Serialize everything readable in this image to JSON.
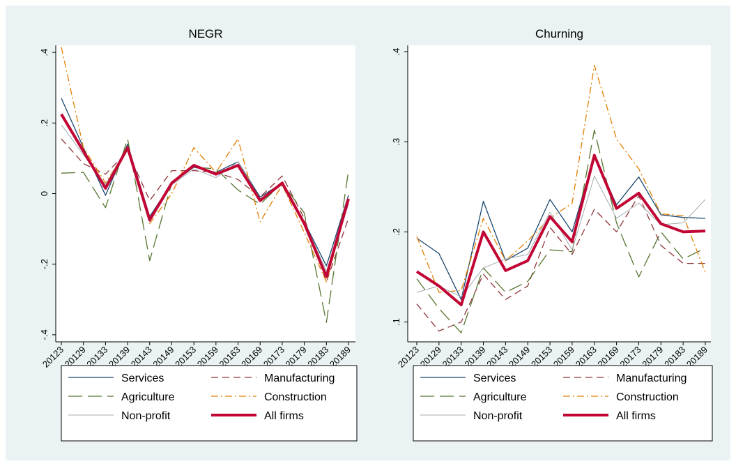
{
  "chart_data": [
    {
      "type": "line",
      "title": "NEGR",
      "categories": [
        "20123",
        "20129",
        "20133",
        "20139",
        "20143",
        "20149",
        "20153",
        "20159",
        "20163",
        "20169",
        "20173",
        "20179",
        "20183",
        "20189"
      ],
      "ylim": [
        -0.42,
        0.42
      ],
      "yticks": [
        {
          "value": -0.4,
          "label": "-.4"
        },
        {
          "value": -0.2,
          "label": "-.2"
        },
        0,
        {
          "value": 0.2,
          "label": ".2"
        },
        {
          "value": 0.4,
          "label": ".4"
        }
      ],
      "series": [
        {
          "name": "Services",
          "color": "#1a476f",
          "values": [
            0.27,
            0.13,
            -0.005,
            0.14,
            -0.065,
            0.03,
            0.075,
            0.06,
            0.09,
            -0.01,
            0.03,
            -0.08,
            -0.205,
            -0.005
          ]
        },
        {
          "name": "Manufacturing",
          "color": "#90353b",
          "values": [
            0.155,
            0.085,
            0.055,
            0.12,
            -0.02,
            0.065,
            0.065,
            0.06,
            0.04,
            -0.01,
            0.05,
            -0.07,
            -0.25,
            -0.07
          ]
        },
        {
          "name": "Agriculture",
          "color": "#55752f",
          "values": [
            0.058,
            0.06,
            -0.04,
            0.155,
            -0.19,
            0.03,
            0.075,
            0.07,
            0.01,
            -0.03,
            0.03,
            -0.055,
            -0.365,
            0.065
          ]
        },
        {
          "name": "Construction",
          "color": "#e37e00",
          "values": [
            0.415,
            0.13,
            0.03,
            0.13,
            -0.085,
            0.0,
            0.13,
            0.06,
            0.155,
            -0.08,
            0.025,
            -0.11,
            -0.25,
            -0.02
          ]
        },
        {
          "name": "Non-profit",
          "color": "#a3acb0",
          "values": [
            0.195,
            0.11,
            0.025,
            0.135,
            -0.08,
            0.025,
            0.07,
            0.045,
            0.09,
            -0.015,
            0.025,
            -0.08,
            -0.22,
            -0.03
          ]
        },
        {
          "name": "All firms",
          "color": "#c10534",
          "values": [
            0.225,
            0.12,
            0.015,
            0.13,
            -0.075,
            0.03,
            0.08,
            0.055,
            0.08,
            -0.02,
            0.03,
            -0.085,
            -0.235,
            -0.015
          ]
        }
      ]
    },
    {
      "type": "line",
      "title": "Churning",
      "categories": [
        "20123",
        "20129",
        "20133",
        "20139",
        "20143",
        "20149",
        "20153",
        "20159",
        "20163",
        "20169",
        "20173",
        "20179",
        "20183",
        "20189"
      ],
      "ylim": [
        0.078,
        0.407
      ],
      "yticks": [
        {
          "value": 0.1,
          "label": ".1"
        },
        {
          "value": 0.2,
          "label": ".2"
        },
        {
          "value": 0.3,
          "label": ".3"
        },
        {
          "value": 0.4,
          "label": ".4"
        }
      ],
      "series": [
        {
          "name": "Services",
          "color": "#1a476f",
          "values": [
            0.193,
            0.176,
            0.125,
            0.234,
            0.168,
            0.182,
            0.236,
            0.2,
            0.285,
            0.23,
            0.261,
            0.219,
            0.216,
            0.215
          ]
        },
        {
          "name": "Manufacturing",
          "color": "#90353b",
          "values": [
            0.12,
            0.09,
            0.1,
            0.153,
            0.125,
            0.14,
            0.205,
            0.175,
            0.225,
            0.2,
            0.24,
            0.185,
            0.165,
            0.165
          ]
        },
        {
          "name": "Agriculture",
          "color": "#55752f",
          "values": [
            0.148,
            0.115,
            0.088,
            0.16,
            0.133,
            0.145,
            0.18,
            0.178,
            0.313,
            0.21,
            0.15,
            0.2,
            0.17,
            0.182
          ]
        },
        {
          "name": "Construction",
          "color": "#e37e00",
          "values": [
            0.195,
            0.133,
            0.135,
            0.215,
            0.168,
            0.19,
            0.215,
            0.232,
            0.385,
            0.303,
            0.27,
            0.22,
            0.218,
            0.155
          ]
        },
        {
          "name": "Non-profit",
          "color": "#a3acb0",
          "values": [
            0.133,
            0.14,
            0.128,
            0.16,
            0.17,
            0.175,
            0.222,
            0.18,
            0.262,
            0.215,
            0.232,
            0.208,
            0.21,
            0.236
          ]
        },
        {
          "name": "All firms",
          "color": "#c10534",
          "values": [
            0.156,
            0.14,
            0.119,
            0.2,
            0.157,
            0.168,
            0.217,
            0.189,
            0.285,
            0.226,
            0.243,
            0.209,
            0.2,
            0.201
          ]
        }
      ]
    }
  ]
}
